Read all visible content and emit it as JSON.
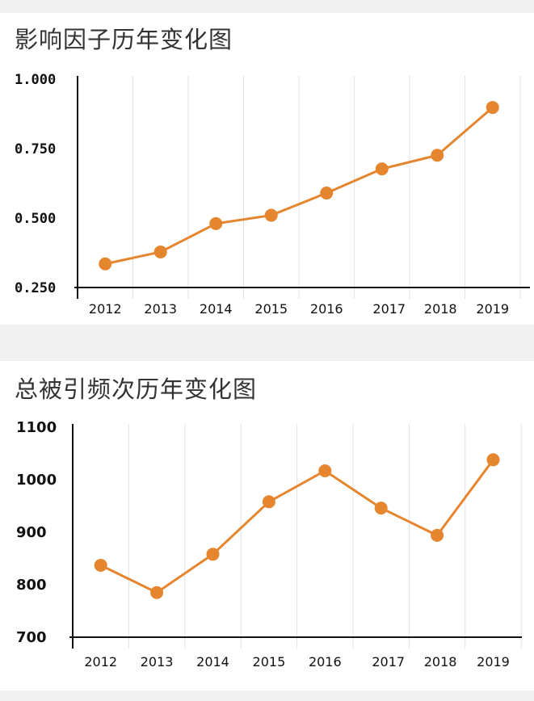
{
  "chart_data": [
    {
      "type": "line",
      "title": "影响因子历年变化图",
      "categories": [
        "2012",
        "2013",
        "2014",
        "2015",
        "2016",
        "2017",
        "2018",
        "2019"
      ],
      "values": [
        0.335,
        0.378,
        0.48,
        0.51,
        0.59,
        0.677,
        0.726,
        0.898
      ],
      "ylim": [
        0.25,
        1.0
      ],
      "yticks": [
        "1.000",
        "0.750",
        "0.500",
        "0.250"
      ],
      "grid": "vertical",
      "color": "#E5862F",
      "xlabel": "",
      "ylabel": ""
    },
    {
      "type": "line",
      "title": "总被引频次历年变化图",
      "categories": [
        "2012",
        "2013",
        "2014",
        "2015",
        "2016",
        "2017",
        "2018",
        "2019"
      ],
      "values": [
        837,
        785,
        858,
        958,
        1017,
        946,
        894,
        1038
      ],
      "ylim": [
        700,
        1100
      ],
      "yticks": [
        "1100",
        "1000",
        "900",
        "800",
        "700"
      ],
      "grid": "vertical",
      "color": "#E5862F",
      "xlabel": "",
      "ylabel": ""
    }
  ]
}
